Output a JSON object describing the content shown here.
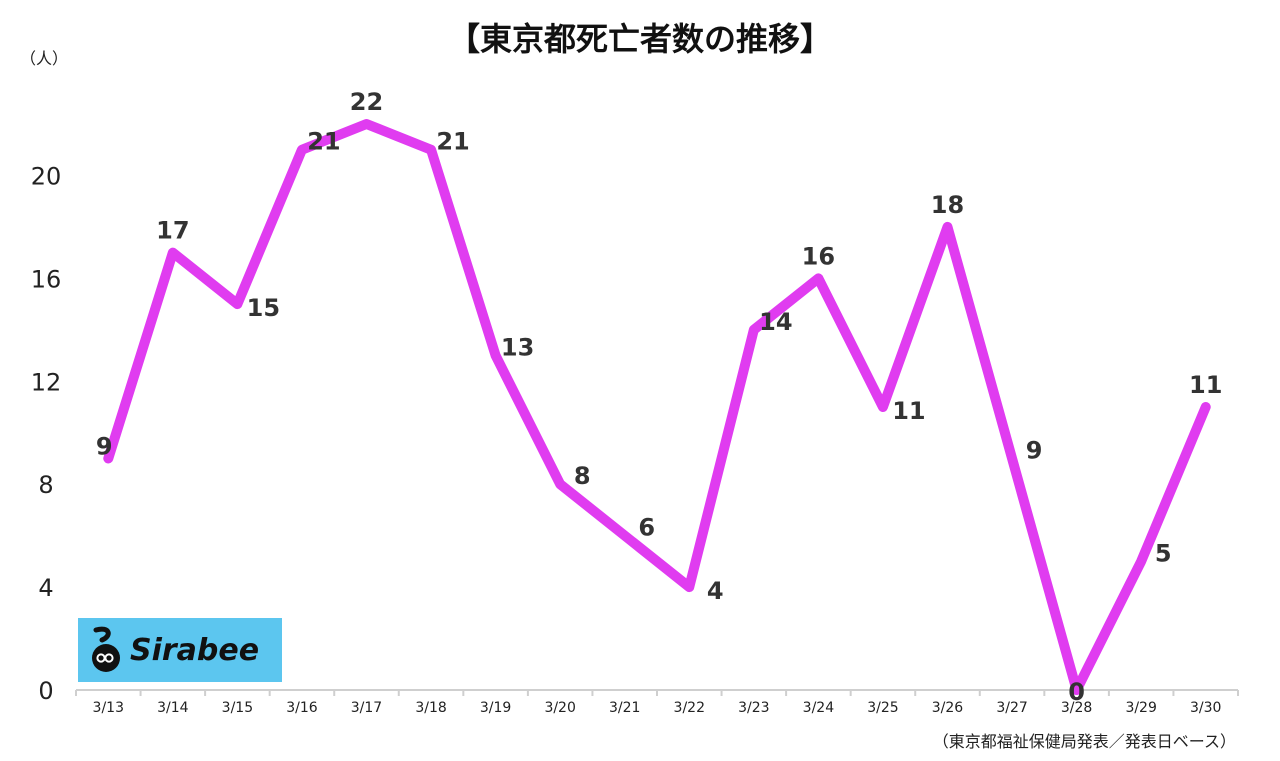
{
  "chart_data": {
    "type": "line",
    "title": "【東京都死亡者数の推移】",
    "ylabel": "（人）",
    "categories": [
      "3/13",
      "3/14",
      "3/15",
      "3/16",
      "3/17",
      "3/18",
      "3/19",
      "3/20",
      "3/21",
      "3/22",
      "3/23",
      "3/24",
      "3/25",
      "3/26",
      "3/27",
      "3/28",
      "3/29",
      "3/30"
    ],
    "series": [
      {
        "values": [
          9,
          17,
          15,
          21,
          22,
          21,
          13,
          8,
          6,
          4,
          14,
          16,
          11,
          18,
          9,
          0,
          5,
          11
        ]
      }
    ],
    "ylim": [
      0,
      22
    ],
    "yticks": [
      0,
      4,
      8,
      12,
      16,
      20
    ],
    "grid": false,
    "line_color": "#e03cf0"
  },
  "source_note": "（東京都福祉保健局発表／発表日ベース）",
  "logo": {
    "text": "Sirabee",
    "background": "#5cc6ef"
  }
}
